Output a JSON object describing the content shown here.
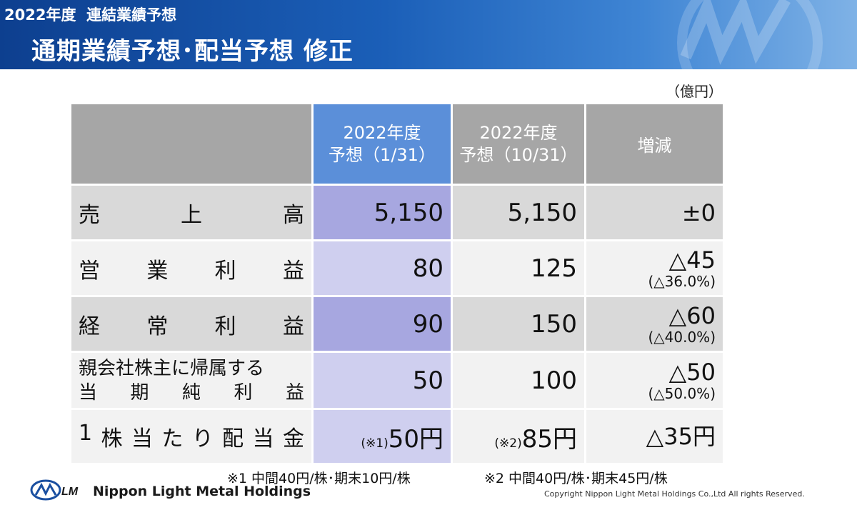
{
  "header": {
    "subtitle": "2022年度  連結業績予想",
    "title": "通期業績予想･配当予想  修正"
  },
  "unit": "（億円）",
  "table": {
    "col_a_line1": "2022年度",
    "col_a_line2": "予想（1/31）",
    "col_b_line1": "2022年度",
    "col_b_line2": "予想（10/31）",
    "col_c": "増減",
    "rows": [
      {
        "label_chars": [
          "売",
          "上",
          "高"
        ],
        "a": "5,150",
        "b": "5,150",
        "change": "±0",
        "pct": ""
      },
      {
        "label_chars": [
          "営",
          "業",
          "利",
          "益"
        ],
        "a": "80",
        "b": "125",
        "change": "△45",
        "pct": "(△36.0%)"
      },
      {
        "label_chars": [
          "経",
          "常",
          "利",
          "益"
        ],
        "a": "90",
        "b": "150",
        "change": "△60",
        "pct": "(△40.0%)"
      },
      {
        "label_line1": "親会社株主に帰属する",
        "label_line2_chars": [
          "当",
          "期",
          "純",
          "利",
          "益"
        ],
        "a": "50",
        "b": "100",
        "change": "△50",
        "pct": "(△50.0%)"
      },
      {
        "label_chars": [
          "1",
          "株",
          "当",
          "た",
          "り",
          "配",
          "当",
          "金"
        ],
        "a_note": "(※1)",
        "a": "50円",
        "b_note": "(※2)",
        "b": "85円",
        "change": "△35円"
      }
    ]
  },
  "footnotes": {
    "note1": "※1 中間40円/株･期末10円/株",
    "note2": "※2 中間40円/株･期末45円/株"
  },
  "footer": {
    "company": "Nippon Light Metal Holdings",
    "copyright": "Copyright Nippon Light Metal Holdings Co.,Ltd All rights Reserved."
  }
}
